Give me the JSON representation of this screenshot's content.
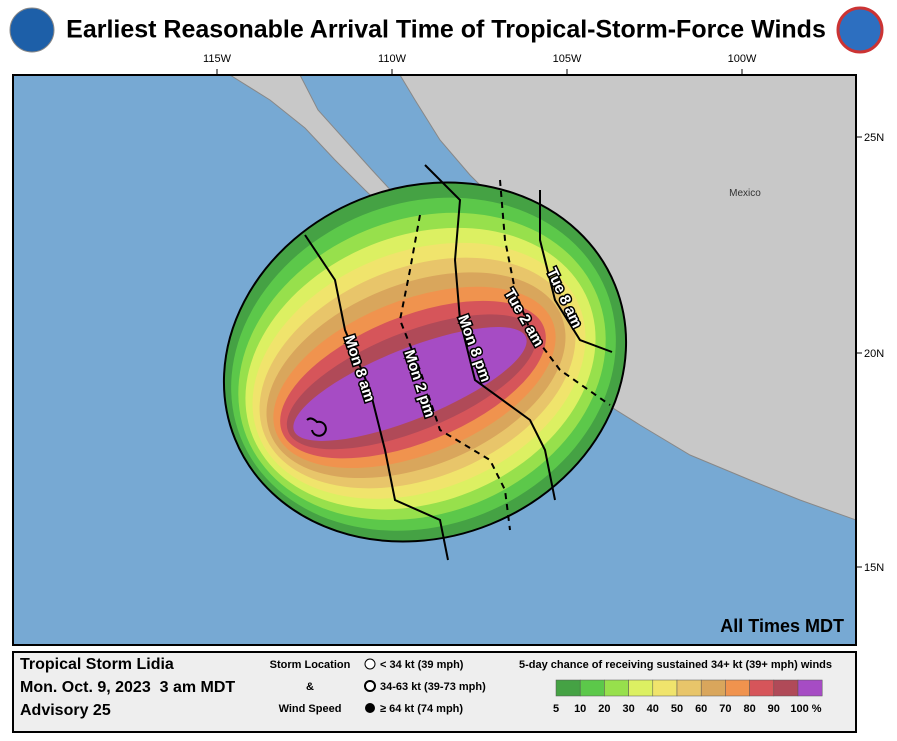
{
  "header": {
    "title": "Earliest Reasonable Arrival Time of Tropical-Storm-Force Winds"
  },
  "map": {
    "lon_labels": [
      "115W",
      "110W",
      "105W",
      "100W"
    ],
    "lat_labels": [
      "25N",
      "20N",
      "15N"
    ],
    "place_label": "Mexico",
    "time_note": "All Times MDT",
    "arrival_labels": [
      "Mon 8 am",
      "Mon 2 pm",
      "Mon 8 pm",
      "Tue 2 am",
      "Tue 8 am"
    ]
  },
  "footer": {
    "storm_name": "Tropical Storm Lidia",
    "issued": "Mon. Oct. 9, 2023  3 am MDT",
    "advisory": "Advisory 25",
    "key_title": [
      "Storm Location",
      "&",
      "Wind Speed"
    ],
    "key_items": [
      "< 34 kt (39 mph)",
      "34-63 kt (39-73 mph)",
      "≥ 64 kt (74 mph)"
    ],
    "scale_title": "5-day chance of receiving sustained 34+ kt (39+ mph) winds",
    "scale_labels": [
      "5",
      "10",
      "20",
      "30",
      "40",
      "50",
      "60",
      "70",
      "80",
      "90",
      "100 %"
    ],
    "scale_colors": [
      "#45a244",
      "#5cc84a",
      "#97e04c",
      "#dcf062",
      "#f0e46c",
      "#e8c56a",
      "#d9a65c",
      "#f0934e",
      "#d6555a",
      "#b04a58",
      "#a64cc4"
    ]
  }
}
